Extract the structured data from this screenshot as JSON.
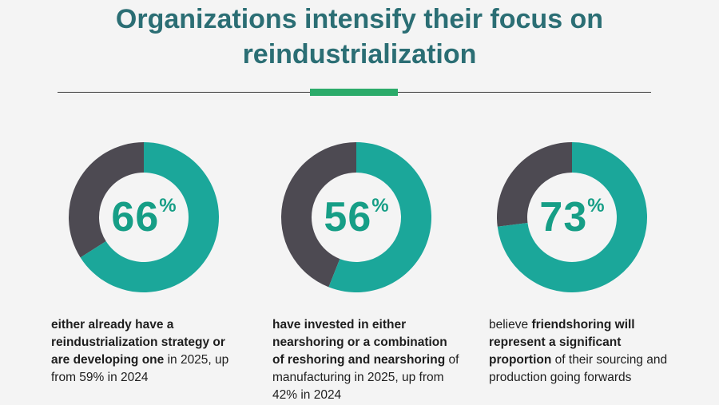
{
  "header": {
    "title_line1": "Organizations intensify their focus on",
    "title_line2": "reindustrialization"
  },
  "colors": {
    "accent_teal": "#1ba79a",
    "remainder_gray": "#4d4a52",
    "percent_text": "#169e86",
    "title": "#2b6e74",
    "divider_green": "#2bab6a"
  },
  "chart_data": [
    {
      "type": "pie",
      "variant": "donut",
      "value": 66,
      "label": "66",
      "unit": "%",
      "caption": [
        {
          "text": "either already have a reindustrialization strategy or are developing one",
          "bold": true
        },
        {
          "text": " in 2025, up from 59% in 2024",
          "bold": false
        }
      ]
    },
    {
      "type": "pie",
      "variant": "donut",
      "value": 56,
      "label": "56",
      "unit": "%",
      "caption": [
        {
          "text": "have invested in either nearshoring or a combination of reshoring and nearshoring",
          "bold": true
        },
        {
          "text": " of manufacturing in 2025, up from 42% in 2024",
          "bold": false
        }
      ]
    },
    {
      "type": "pie",
      "variant": "donut",
      "value": 73,
      "label": "73",
      "unit": "%",
      "caption": [
        {
          "text": "believe ",
          "bold": false
        },
        {
          "text": "friendshoring will represent a significant proportion",
          "bold": true
        },
        {
          "text": " of their sourcing and production going forwards",
          "bold": false
        }
      ]
    }
  ]
}
